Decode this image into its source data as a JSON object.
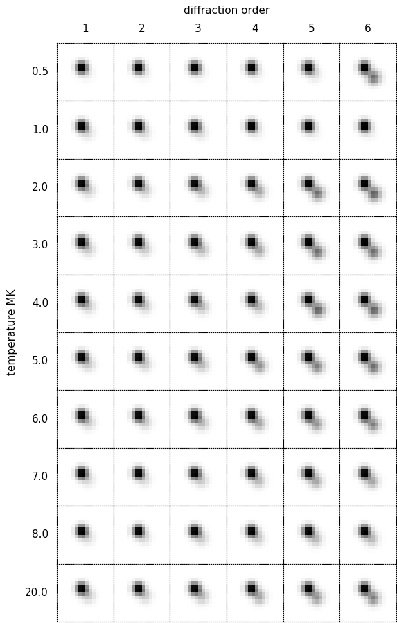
{
  "chart_data": {
    "type": "image_grid",
    "x_label": "diffraction order",
    "y_label": "temperature MK",
    "categories": [
      "1",
      "2",
      "3",
      "4",
      "5",
      "6"
    ],
    "rows": [
      "0.5",
      "1.0",
      "2.0",
      "3.0",
      "4.0",
      "5.0",
      "6.0",
      "7.0",
      "8.0",
      "20.0"
    ],
    "values": [
      [
        0.1,
        0.1,
        0.1,
        0.1,
        0.2,
        0.8
      ],
      [
        0.2,
        0.2,
        0.2,
        0.1,
        0.1,
        0.1
      ],
      [
        0.3,
        0.3,
        0.4,
        0.5,
        0.8,
        0.9
      ],
      [
        0.3,
        0.3,
        0.4,
        0.5,
        0.8,
        0.8
      ],
      [
        0.3,
        0.3,
        0.4,
        0.4,
        0.9,
        0.9
      ],
      [
        0.3,
        0.3,
        0.4,
        0.6,
        0.7,
        0.8
      ],
      [
        0.3,
        0.3,
        0.4,
        0.5,
        0.6,
        0.7
      ],
      [
        0.2,
        0.2,
        0.3,
        0.4,
        0.5,
        0.5
      ],
      [
        0.2,
        0.2,
        0.3,
        0.3,
        0.4,
        0.4
      ],
      [
        0.3,
        0.3,
        0.4,
        0.5,
        0.6,
        0.7
      ]
    ]
  }
}
